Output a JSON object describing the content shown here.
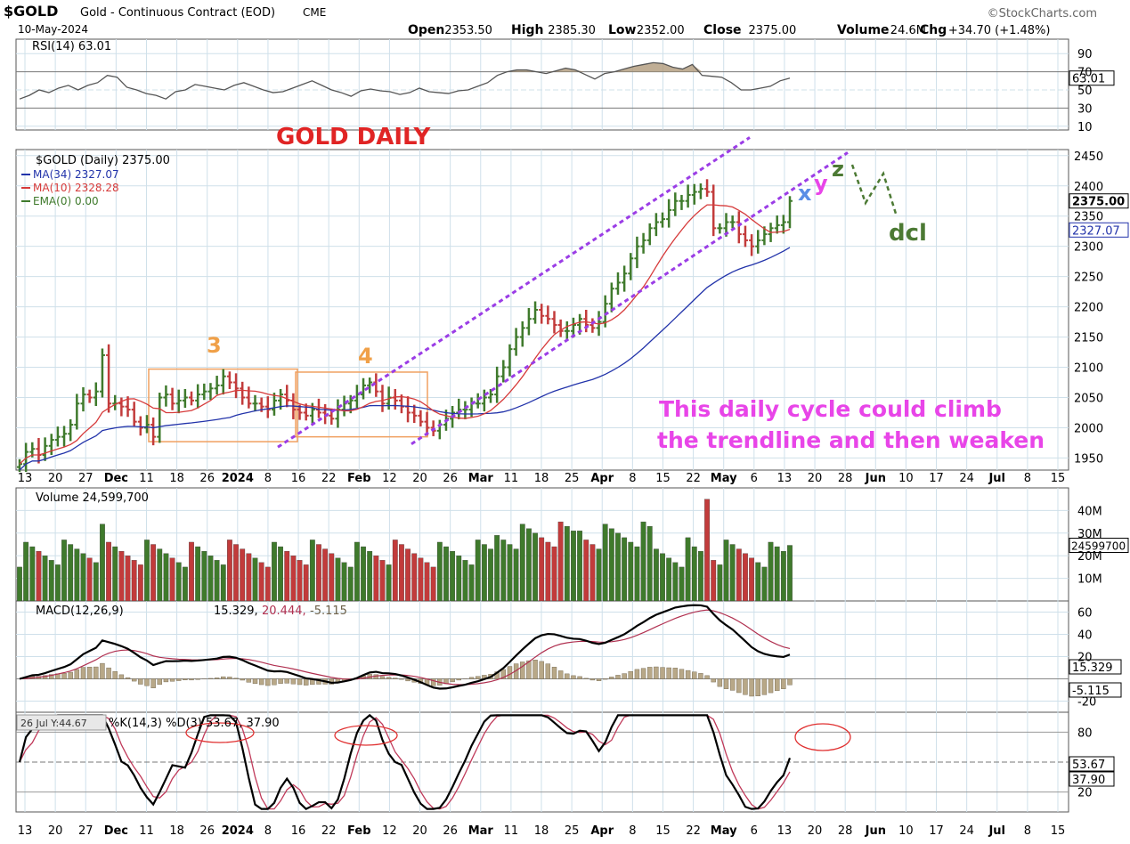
{
  "header": {
    "symbol": "$GOLD",
    "name": "Gold - Continuous Contract (EOD)",
    "exchange": "CME",
    "watermark": "©StockCharts.com",
    "date": "10-May-2024",
    "ohlc_labels": [
      "Open",
      "High",
      "Low",
      "Close",
      "Volume",
      "Chg"
    ],
    "ohlc_values": [
      "2353.50",
      "2385.30",
      "2352.00",
      "2375.00",
      "24.6M",
      "+34.70 (+1.48%)"
    ]
  },
  "annotations": {
    "title": "GOLD DAILY",
    "wave3": "3",
    "wave4": "4",
    "wave_x": "x",
    "wave_y": "y",
    "wave_z": "z",
    "dcl": "dcl",
    "note_line1": "This daily cycle could climb",
    "note_line2": "the trendline and then weaken"
  },
  "colors": {
    "up": "#3f7a2c",
    "down": "#c23b3b",
    "ma34": "#2233aa",
    "ma10": "#d63a3a",
    "channel": "#9b3de6",
    "box": "#f0a060",
    "wave_orange": "#f0a048",
    "title_red": "#e02424",
    "note_magenta": "#e845e8",
    "dcl_green": "#4c7a34",
    "grid": "#cfe0ea"
  },
  "x_axis": {
    "labels": [
      "13",
      "20",
      "27",
      "Dec",
      "11",
      "18",
      "26",
      "2024",
      "8",
      "16",
      "22",
      "Feb",
      "12",
      "20",
      "26",
      "Mar",
      "11",
      "18",
      "25",
      "Apr",
      "8",
      "15",
      "22",
      "May",
      "6",
      "13",
      "20",
      "28",
      "Jun",
      "10",
      "17",
      "24",
      "Jul",
      "8",
      "15"
    ],
    "bold_labels": [
      "Dec",
      "2024",
      "Feb",
      "Mar",
      "Apr",
      "May",
      "Jun",
      "Jul"
    ]
  },
  "panels": {
    "rsi": {
      "label": "RSI(14) 63.01",
      "ticks": [
        "90",
        "70",
        "50",
        "30",
        "10"
      ],
      "last": "63.01",
      "series": [
        40,
        44,
        50,
        47,
        52,
        55,
        50,
        55,
        58,
        66,
        64,
        53,
        50,
        46,
        44,
        40,
        48,
        50,
        56,
        54,
        52,
        50,
        55,
        58,
        54,
        50,
        47,
        48,
        52,
        56,
        60,
        55,
        50,
        47,
        43,
        49,
        51,
        49,
        48,
        45,
        47,
        52,
        48,
        47,
        46,
        49,
        50,
        54,
        58,
        66,
        70,
        72,
        72,
        70,
        68,
        71,
        74,
        72,
        67,
        62,
        68,
        70,
        73,
        76,
        78,
        80,
        79,
        75,
        73,
        78,
        66,
        65,
        64,
        58,
        50,
        50,
        52,
        54,
        60,
        63
      ]
    },
    "price": {
      "label": "$GOLD (Daily) 2375.00",
      "legend": [
        {
          "name": "MA(34) 2327.07",
          "color": "#2233aa"
        },
        {
          "name": "MA(10) 2328.28",
          "color": "#d63a3a"
        },
        {
          "name": "EMA(0) 0.00",
          "color": "#3f7a2c"
        }
      ],
      "ticks": [
        "2450",
        "2400",
        "2350",
        "2300",
        "2250",
        "2200",
        "2150",
        "2100",
        "2050",
        "2000",
        "1950"
      ],
      "last_close": "2375.00",
      "ma_last": "2327.07"
    },
    "volume": {
      "label": "Volume 24,599,700",
      "ticks": [
        "40M",
        "30M",
        "20M",
        "10M"
      ],
      "last": "24599700"
    },
    "macd": {
      "label": "MACD(12,26,9)",
      "values": [
        "15.329",
        "20.444",
        "-5.115"
      ],
      "ticks": [
        "60",
        "40",
        "20",
        "-20"
      ],
      "last_badges": [
        "15.329",
        "-5.115"
      ]
    },
    "stoch": {
      "label": "%K(14,3) %D(3) 53.67, 37.90",
      "cursor": "26 Jul Y:44.67",
      "ticks": [
        "80",
        "20"
      ],
      "last_badges": [
        "53.67",
        "37.90"
      ]
    }
  },
  "chart_data": {
    "type": "line",
    "title": "GOLD DAILY",
    "subtitle": "Gold - Continuous Contract (EOD)",
    "date_range": [
      "2023-11-13",
      "2024-05-10"
    ],
    "price_close": [
      1940,
      1960,
      1965,
      1955,
      1970,
      1980,
      1985,
      1990,
      2005,
      2040,
      2055,
      2050,
      2060,
      2120,
      2040,
      2040,
      2035,
      2030,
      2010,
      2000,
      2005,
      1985,
      2050,
      2055,
      2040,
      2045,
      2050,
      2045,
      2055,
      2060,
      2065,
      2070,
      2085,
      2075,
      2065,
      2050,
      2040,
      2040,
      2035,
      2030,
      2045,
      2055,
      2045,
      2030,
      2025,
      2020,
      2030,
      2025,
      2020,
      2015,
      2030,
      2040,
      2045,
      2055,
      2070,
      2075,
      2060,
      2040,
      2050,
      2045,
      2035,
      2025,
      2020,
      2010,
      2000,
      1995,
      2005,
      2015,
      2025,
      2030,
      2030,
      2040,
      2040,
      2050,
      2055,
      2085,
      2100,
      2130,
      2150,
      2165,
      2180,
      2195,
      2185,
      2180,
      2170,
      2160,
      2160,
      2170,
      2180,
      2170,
      2165,
      2175,
      2205,
      2230,
      2240,
      2255,
      2280,
      2300,
      2310,
      2330,
      2340,
      2345,
      2360,
      2375,
      2375,
      2385,
      2390,
      2395,
      2390,
      2330,
      2330,
      2340,
      2340,
      2320,
      2310,
      2300,
      2310,
      2320,
      2330,
      2335,
      2340,
      2375
    ],
    "ma34_last": 2327.07,
    "ma10_last": 2328.28,
    "volume_last": 24599700,
    "macd_last": [
      15.329,
      20.444,
      -5.115
    ],
    "stoch_last": [
      53.67,
      37.9
    ],
    "rsi_last": 63.01,
    "ylim_price": [
      1930,
      2460
    ]
  }
}
